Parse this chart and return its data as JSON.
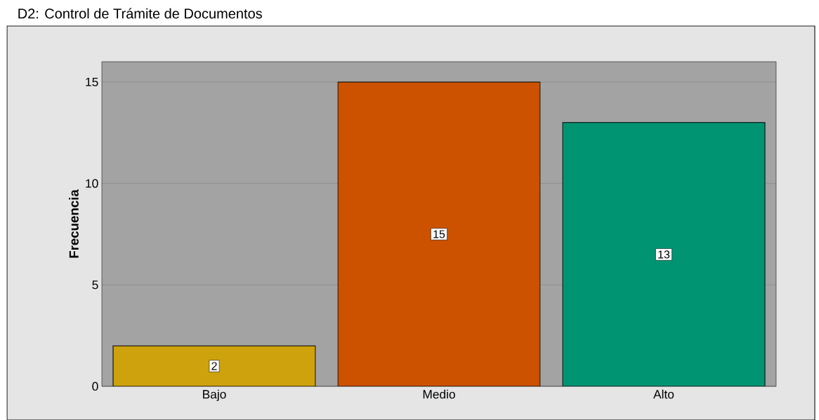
{
  "chart_data": {
    "type": "bar",
    "title": "D2: Control de Trámite de Documentos",
    "ylabel": "Frecuencia",
    "categories": [
      "Bajo",
      "Medio",
      "Alto"
    ],
    "values": [
      2,
      15,
      13
    ],
    "colors": [
      "#cda20c",
      "#cc5200",
      "#009473"
    ],
    "ylim": [
      0,
      16
    ],
    "yticks": [
      0,
      5,
      10,
      15
    ],
    "grid": "y",
    "data_labels": true
  }
}
